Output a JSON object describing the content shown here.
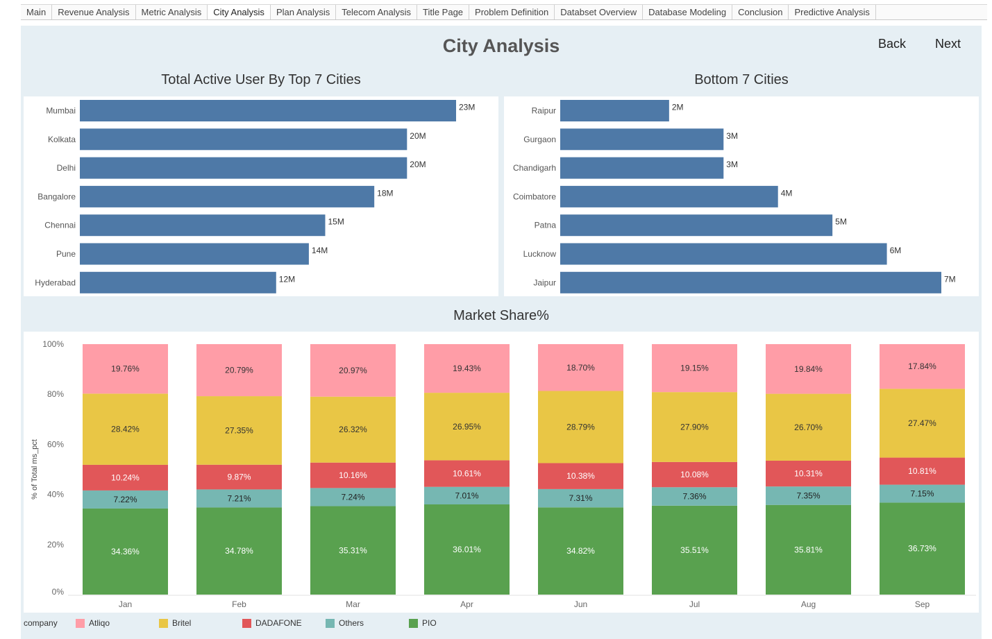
{
  "tabs": [
    "Main",
    "Revenue Analysis",
    "Metric Analysis",
    "City Analysis",
    "Plan Analysis",
    "Telecom Analysis",
    "Title Page",
    "Problem Definition",
    "Databset Overview",
    "Database Modeling",
    "Conclusion",
    "Predictive Analysis"
  ],
  "active_tab": "City Analysis",
  "page_title": "City Analysis",
  "nav": {
    "back": "Back",
    "next": "Next"
  },
  "legend": {
    "title": "company",
    "items": [
      {
        "label": "Atliqo",
        "color": "#ff9da7"
      },
      {
        "label": "Britel",
        "color": "#e9c645"
      },
      {
        "label": "DADAFONE",
        "color": "#e15759"
      },
      {
        "label": "Others",
        "color": "#76b7b2"
      },
      {
        "label": "PIO",
        "color": "#59a14f"
      }
    ]
  },
  "chart_data": [
    {
      "type": "bar",
      "orientation": "horizontal",
      "title": "Total Active User By Top 7 Cities",
      "categories": [
        "Mumbai",
        "Kolkata",
        "Delhi",
        "Bangalore",
        "Chennai",
        "Pune",
        "Hyderabad"
      ],
      "values": [
        23,
        20,
        20,
        18,
        15,
        14,
        12
      ],
      "labels": [
        "23M",
        "20M",
        "20M",
        "18M",
        "15M",
        "14M",
        "12M"
      ],
      "unit": "M",
      "color": "#4e79a7"
    },
    {
      "type": "bar",
      "orientation": "horizontal",
      "title": "Bottom 7 Cities",
      "categories": [
        "Raipur",
        "Gurgaon",
        "Chandigarh",
        "Coimbatore",
        "Patna",
        "Lucknow",
        "Jaipur"
      ],
      "values": [
        2,
        3,
        3,
        4,
        5,
        6,
        7
      ],
      "labels": [
        "2M",
        "3M",
        "3M",
        "4M",
        "5M",
        "6M",
        "7M"
      ],
      "unit": "M",
      "color": "#4e79a7"
    },
    {
      "type": "bar",
      "stacked": true,
      "title": "Market Share%",
      "ylabel": "% of Total ms_pct",
      "yticks": [
        "0%",
        "20%",
        "40%",
        "60%",
        "80%",
        "100%"
      ],
      "ylim": [
        0,
        100
      ],
      "categories": [
        "Jan",
        "Feb",
        "Mar",
        "Apr",
        "Jun",
        "Jul",
        "Aug",
        "Sep"
      ],
      "series": [
        {
          "name": "PIO",
          "color": "#59a14f",
          "values": [
            34.36,
            34.78,
            35.31,
            36.01,
            34.82,
            35.51,
            35.81,
            36.73
          ]
        },
        {
          "name": "Others",
          "color": "#76b7b2",
          "values": [
            7.22,
            7.21,
            7.24,
            7.01,
            7.31,
            7.36,
            7.35,
            7.15
          ]
        },
        {
          "name": "DADAFONE",
          "color": "#e15759",
          "values": [
            10.24,
            9.87,
            10.16,
            10.61,
            10.38,
            10.08,
            10.31,
            10.81
          ]
        },
        {
          "name": "Britel",
          "color": "#e9c645",
          "values": [
            28.42,
            27.35,
            26.32,
            26.95,
            28.79,
            27.9,
            26.7,
            27.47
          ]
        },
        {
          "name": "Atliqo",
          "color": "#ff9da7",
          "values": [
            19.76,
            20.79,
            20.97,
            19.43,
            18.7,
            19.15,
            19.84,
            17.84
          ]
        }
      ]
    }
  ]
}
